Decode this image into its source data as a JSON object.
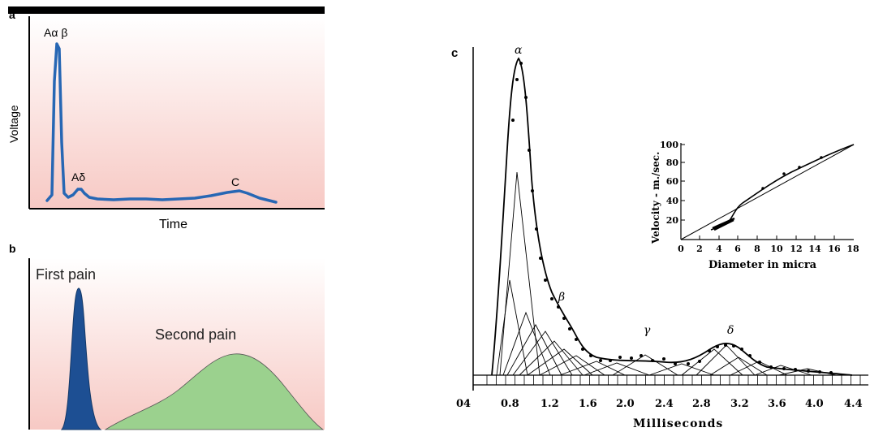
{
  "panel_a": {
    "letter": "a",
    "ylabel": "Voltage",
    "xlabel": "Time",
    "peak_labels": [
      "Aα β",
      "Aδ",
      "C"
    ],
    "colors": {
      "line": "#2767b4",
      "bg_top": "#ffffff",
      "bg_bottom": "#f7c9c4"
    }
  },
  "panel_b": {
    "letter": "b",
    "first_label": "First pain",
    "second_label": "Second pain",
    "colors": {
      "first": "#1d4f93",
      "second": "#9bd18e",
      "bg_top": "#ffffff",
      "bg_bottom": "#f7c9c4"
    }
  },
  "panel_c": {
    "letter": "c",
    "xlabel": "Milliseconds",
    "x_ticks": [
      "04",
      "0.8",
      "1.2",
      "1.6",
      "2.0",
      "2.4",
      "2.8",
      "3.2",
      "3.6",
      "4.0",
      "4.4"
    ],
    "peak_labels": [
      "α",
      "β",
      "γ",
      "δ"
    ],
    "inset": {
      "ylabel": "Velocity - m./sec.",
      "xlabel": "Diameter in micra",
      "x_ticks": [
        "0",
        "2",
        "4",
        "6",
        "8",
        "10",
        "12",
        "14",
        "16",
        "18"
      ],
      "y_ticks": [
        "20",
        "40",
        "60",
        "80",
        "100"
      ]
    }
  },
  "chart_data": [
    {
      "type": "line",
      "title": "",
      "xlabel": "Time",
      "ylabel": "Voltage",
      "series": [
        {
          "values": [
            0.02,
            0.95,
            0.03,
            0.07,
            0.02,
            0.02,
            0.03,
            0.03,
            0.06,
            0.02
          ]
        }
      ],
      "x": [
        0.05,
        0.08,
        0.14,
        0.2,
        0.3,
        0.45,
        0.6,
        0.75,
        0.85,
        0.95
      ],
      "annotations": [
        "Aα β",
        "Aδ",
        "C"
      ]
    },
    {
      "type": "area",
      "title": "",
      "series": [
        {
          "name": "First pain",
          "peak_x": 0.18,
          "peak_y": 0.88
        },
        {
          "name": "Second pain",
          "peak_x": 0.68,
          "peak_y": 0.48
        }
      ]
    },
    {
      "type": "line",
      "title": "",
      "xlabel": "Milliseconds",
      "xlim": [
        0.4,
        4.6
      ],
      "series": [
        {
          "x": [
            0.7,
            0.78,
            0.85,
            0.9,
            0.95,
            1.0,
            1.1,
            1.2,
            1.3,
            1.4,
            1.5,
            1.6,
            2.0,
            2.4,
            2.8,
            3.0,
            3.2,
            3.4,
            3.6,
            4.0,
            4.4
          ],
          "values": [
            0.0,
            0.3,
            0.85,
            1.0,
            0.9,
            0.7,
            0.42,
            0.3,
            0.22,
            0.14,
            0.08,
            0.05,
            0.04,
            0.04,
            0.05,
            0.09,
            0.11,
            0.05,
            0.03,
            0.02,
            0.0
          ]
        }
      ],
      "annotations": [
        "α",
        "β",
        "γ",
        "δ"
      ]
    },
    {
      "type": "line",
      "title": "",
      "xlabel": "Diameter in micra",
      "ylabel": "Velocity - m./sec.",
      "xlim": [
        0,
        18
      ],
      "ylim": [
        0,
        100
      ],
      "series": [
        {
          "x": [
            0,
            18
          ],
          "values": [
            0,
            100
          ]
        },
        {
          "x": [
            3.5,
            5,
            6,
            8,
            10,
            12,
            14,
            16,
            18
          ],
          "values": [
            14,
            17,
            32,
            50,
            66,
            74,
            82,
            90,
            98
          ]
        }
      ]
    }
  ]
}
